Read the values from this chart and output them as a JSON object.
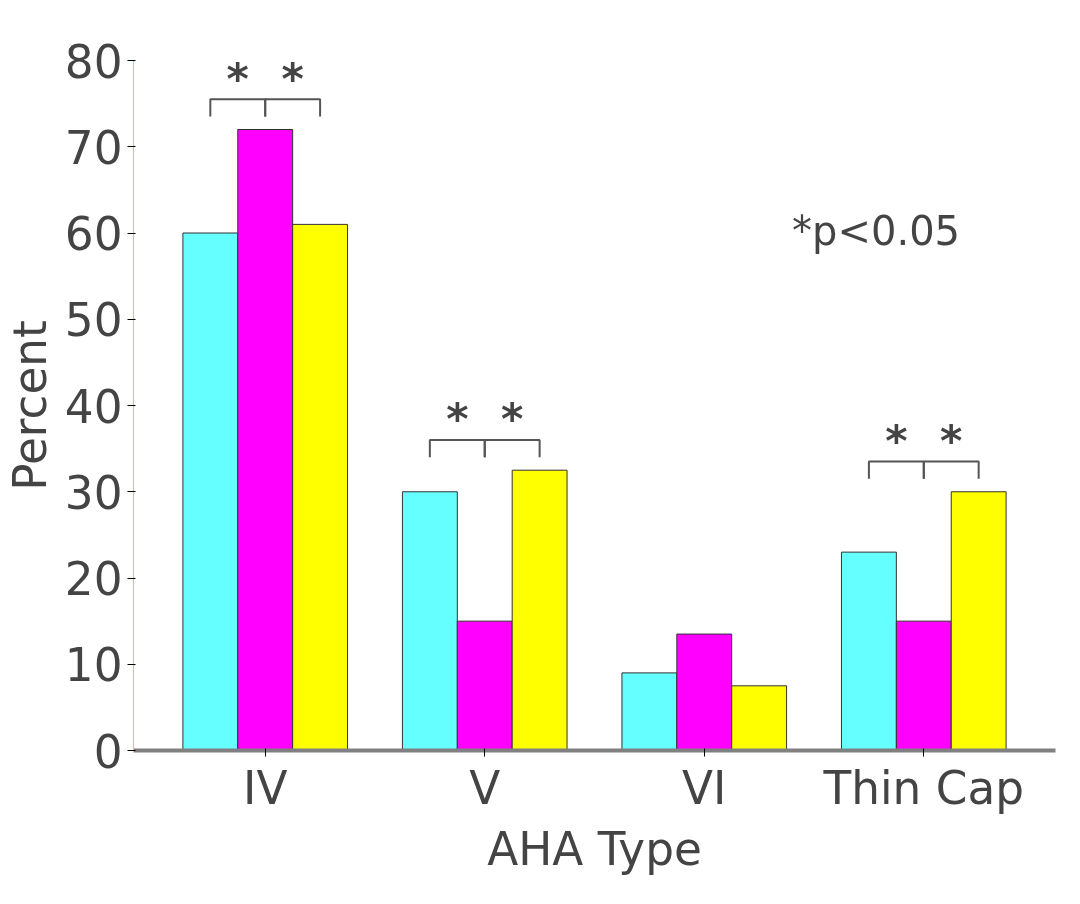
{
  "chart_data": {
    "type": "bar",
    "ylabel": "Percent",
    "xlabel": "AHA Type",
    "categories": [
      "IV",
      "V",
      "VI",
      "Thin Cap"
    ],
    "series": [
      {
        "color": "#66ffff",
        "values": [
          60,
          30,
          9,
          23
        ]
      },
      {
        "color": "#ff00ff",
        "values": [
          72,
          15,
          13.5,
          15
        ]
      },
      {
        "color": "#ffff00",
        "values": [
          61,
          32.5,
          7.5,
          30
        ]
      }
    ],
    "ylim": [
      0,
      80
    ],
    "yticks": [
      0,
      10,
      20,
      30,
      40,
      50,
      60,
      70,
      80
    ],
    "grid": false,
    "annotations": [
      "*",
      "*",
      "*",
      "*",
      "*",
      "*",
      "*p<0.05"
    ]
  }
}
